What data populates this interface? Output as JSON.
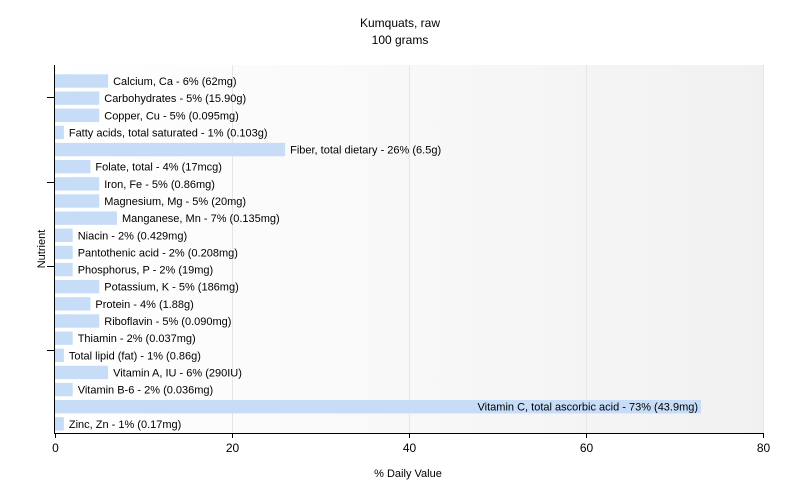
{
  "chart_data": {
    "type": "bar",
    "orientation": "horizontal",
    "title": "Kumquats, raw",
    "subtitle": "100 grams",
    "xlabel": "% Daily Value",
    "ylabel": "Nutrient",
    "xlim": [
      0,
      80
    ],
    "xticks": [
      0,
      20,
      40,
      60,
      80
    ],
    "grid": true,
    "bar_color": "#c6dcf7",
    "categories": [
      "Calcium, Ca",
      "Carbohydrates",
      "Copper, Cu",
      "Fatty acids, total saturated",
      "Fiber, total dietary",
      "Folate, total",
      "Iron, Fe",
      "Magnesium, Mg",
      "Manganese, Mn",
      "Niacin",
      "Pantothenic acid",
      "Phosphorus, P",
      "Potassium, K",
      "Protein",
      "Riboflavin",
      "Thiamin",
      "Total lipid (fat)",
      "Vitamin A, IU",
      "Vitamin B-6",
      "Vitamin C, total ascorbic acid",
      "Zinc, Zn"
    ],
    "values": [
      6,
      5,
      5,
      1,
      26,
      4,
      5,
      5,
      7,
      2,
      2,
      2,
      5,
      4,
      5,
      2,
      1,
      6,
      2,
      73,
      1
    ],
    "labels": [
      "Calcium, Ca - 6% (62mg)",
      "Carbohydrates - 5% (15.90g)",
      "Copper, Cu - 5% (0.095mg)",
      "Fatty acids, total saturated - 1% (0.103g)",
      "Fiber, total dietary - 26% (6.5g)",
      "Folate, total - 4% (17mcg)",
      "Iron, Fe - 5% (0.86mg)",
      "Magnesium, Mg - 5% (20mg)",
      "Manganese, Mn - 7% (0.135mg)",
      "Niacin - 2% (0.429mg)",
      "Pantothenic acid - 2% (0.208mg)",
      "Phosphorus, P - 2% (19mg)",
      "Potassium, K - 5% (186mg)",
      "Protein - 4% (1.88g)",
      "Riboflavin - 5% (0.090mg)",
      "Thiamin - 2% (0.037mg)",
      "Total lipid (fat) - 1% (0.86g)",
      "Vitamin A, IU - 6% (290IU)",
      "Vitamin B-6 - 2% (0.036mg)",
      "Vitamin C, total ascorbic acid - 73% (43.9mg)",
      "Zinc, Zn - 1% (0.17mg)"
    ]
  }
}
